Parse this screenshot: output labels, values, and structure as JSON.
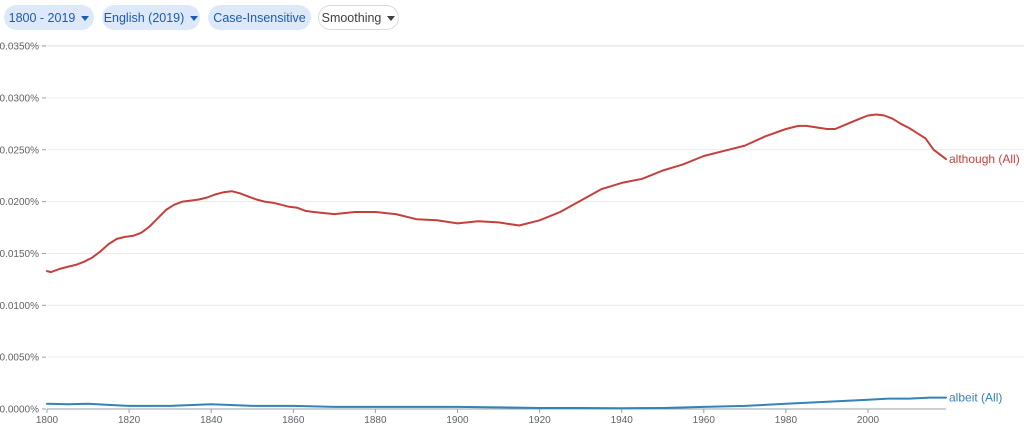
{
  "controls": {
    "year_range": "1800 - 2019",
    "corpus": "English (2019)",
    "case_mode": "Case-Insensitive",
    "smoothing": "Smoothing"
  },
  "colors": {
    "although": "#c5403b",
    "albeit": "#3283b6",
    "chip_bg": "#dde9f9",
    "chip_text": "#1a5bb5"
  },
  "chart_data": {
    "type": "line",
    "x_ticks": [
      1800,
      1820,
      1840,
      1860,
      1880,
      1900,
      1920,
      1940,
      1960,
      1980,
      2000
    ],
    "y_ticks": [
      0,
      0.005,
      0.01,
      0.015,
      0.02,
      0.025,
      0.03,
      0.035
    ],
    "y_tick_labels": [
      "0.0000%",
      "0.0050%",
      "0.0100%",
      "0.0150%",
      "0.0200%",
      "0.0250%",
      "0.0300%",
      "0.0350%"
    ],
    "xlim": [
      1800,
      2019
    ],
    "ylim": [
      0,
      0.0352
    ],
    "grid": true,
    "series": [
      {
        "name": "although (All)",
        "x": [
          1800,
          1801,
          1803,
          1805,
          1807,
          1809,
          1811,
          1813,
          1815,
          1817,
          1819,
          1821,
          1823,
          1825,
          1827,
          1829,
          1831,
          1833,
          1835,
          1837,
          1839,
          1841,
          1843,
          1845,
          1847,
          1849,
          1851,
          1853,
          1855,
          1857,
          1859,
          1861,
          1863,
          1865,
          1870,
          1875,
          1880,
          1885,
          1890,
          1895,
          1900,
          1905,
          1910,
          1915,
          1920,
          1925,
          1930,
          1935,
          1940,
          1945,
          1950,
          1955,
          1960,
          1965,
          1970,
          1975,
          1980,
          1983,
          1985,
          1990,
          1992,
          1995,
          1998,
          2000,
          2002,
          2004,
          2006,
          2008,
          2010,
          2012,
          2014,
          2016,
          2019
        ],
        "values": [
          0.0133,
          0.0132,
          0.0135,
          0.0137,
          0.0139,
          0.0142,
          0.0146,
          0.0152,
          0.0159,
          0.0164,
          0.0166,
          0.0167,
          0.017,
          0.0176,
          0.0184,
          0.0192,
          0.0197,
          0.02,
          0.0201,
          0.0202,
          0.0204,
          0.0207,
          0.0209,
          0.021,
          0.0208,
          0.0205,
          0.0202,
          0.02,
          0.0199,
          0.0197,
          0.0195,
          0.0194,
          0.0191,
          0.019,
          0.0188,
          0.019,
          0.019,
          0.0188,
          0.0183,
          0.0182,
          0.0179,
          0.0181,
          0.018,
          0.0177,
          0.0182,
          0.019,
          0.0201,
          0.0212,
          0.0218,
          0.0222,
          0.023,
          0.0236,
          0.0244,
          0.0249,
          0.0254,
          0.0263,
          0.027,
          0.0273,
          0.0273,
          0.027,
          0.027,
          0.0275,
          0.028,
          0.0283,
          0.0284,
          0.0283,
          0.028,
          0.0275,
          0.0271,
          0.0266,
          0.0261,
          0.025,
          0.0241
        ]
      },
      {
        "name": "albeit (All)",
        "x": [
          1800,
          1805,
          1810,
          1815,
          1820,
          1830,
          1840,
          1850,
          1860,
          1870,
          1880,
          1890,
          1900,
          1910,
          1920,
          1930,
          1940,
          1950,
          1960,
          1970,
          1980,
          1990,
          2000,
          2005,
          2010,
          2015,
          2019
        ],
        "values": [
          0.0005,
          0.00045,
          0.0005,
          0.0004,
          0.0003,
          0.0003,
          0.00045,
          0.0003,
          0.0003,
          0.0002,
          0.0002,
          0.0002,
          0.0002,
          0.00015,
          0.0001,
          0.0001,
          8e-05,
          0.0001,
          0.0002,
          0.0003,
          0.0005,
          0.0007,
          0.0009,
          0.001,
          0.001,
          0.0011,
          0.0011
        ]
      }
    ]
  }
}
